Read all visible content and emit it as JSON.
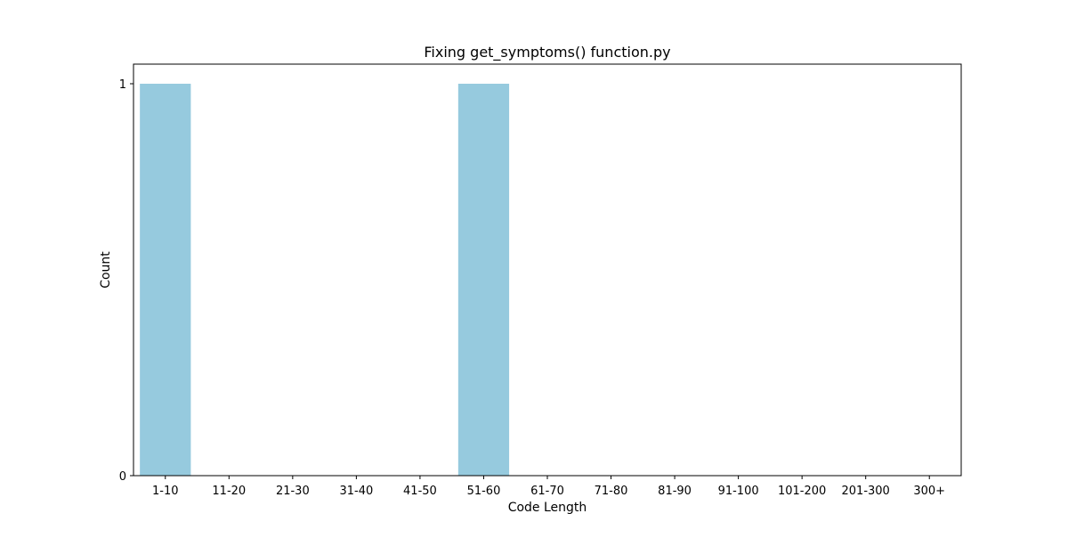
{
  "chart_data": {
    "type": "bar",
    "title": "Fixing get_symptoms() function.py",
    "xlabel": "Code Length",
    "ylabel": "Count",
    "categories": [
      "1-10",
      "11-20",
      "21-30",
      "31-40",
      "41-50",
      "51-60",
      "61-70",
      "71-80",
      "81-90",
      "91-100",
      "101-200",
      "201-300",
      "300+"
    ],
    "values": [
      1,
      0,
      0,
      0,
      0,
      1,
      0,
      0,
      0,
      0,
      0,
      0,
      0
    ],
    "yticks": [
      "0",
      "1"
    ],
    "ylim": [
      0,
      1.05
    ],
    "grid": false,
    "bar_color": "#96cade"
  }
}
